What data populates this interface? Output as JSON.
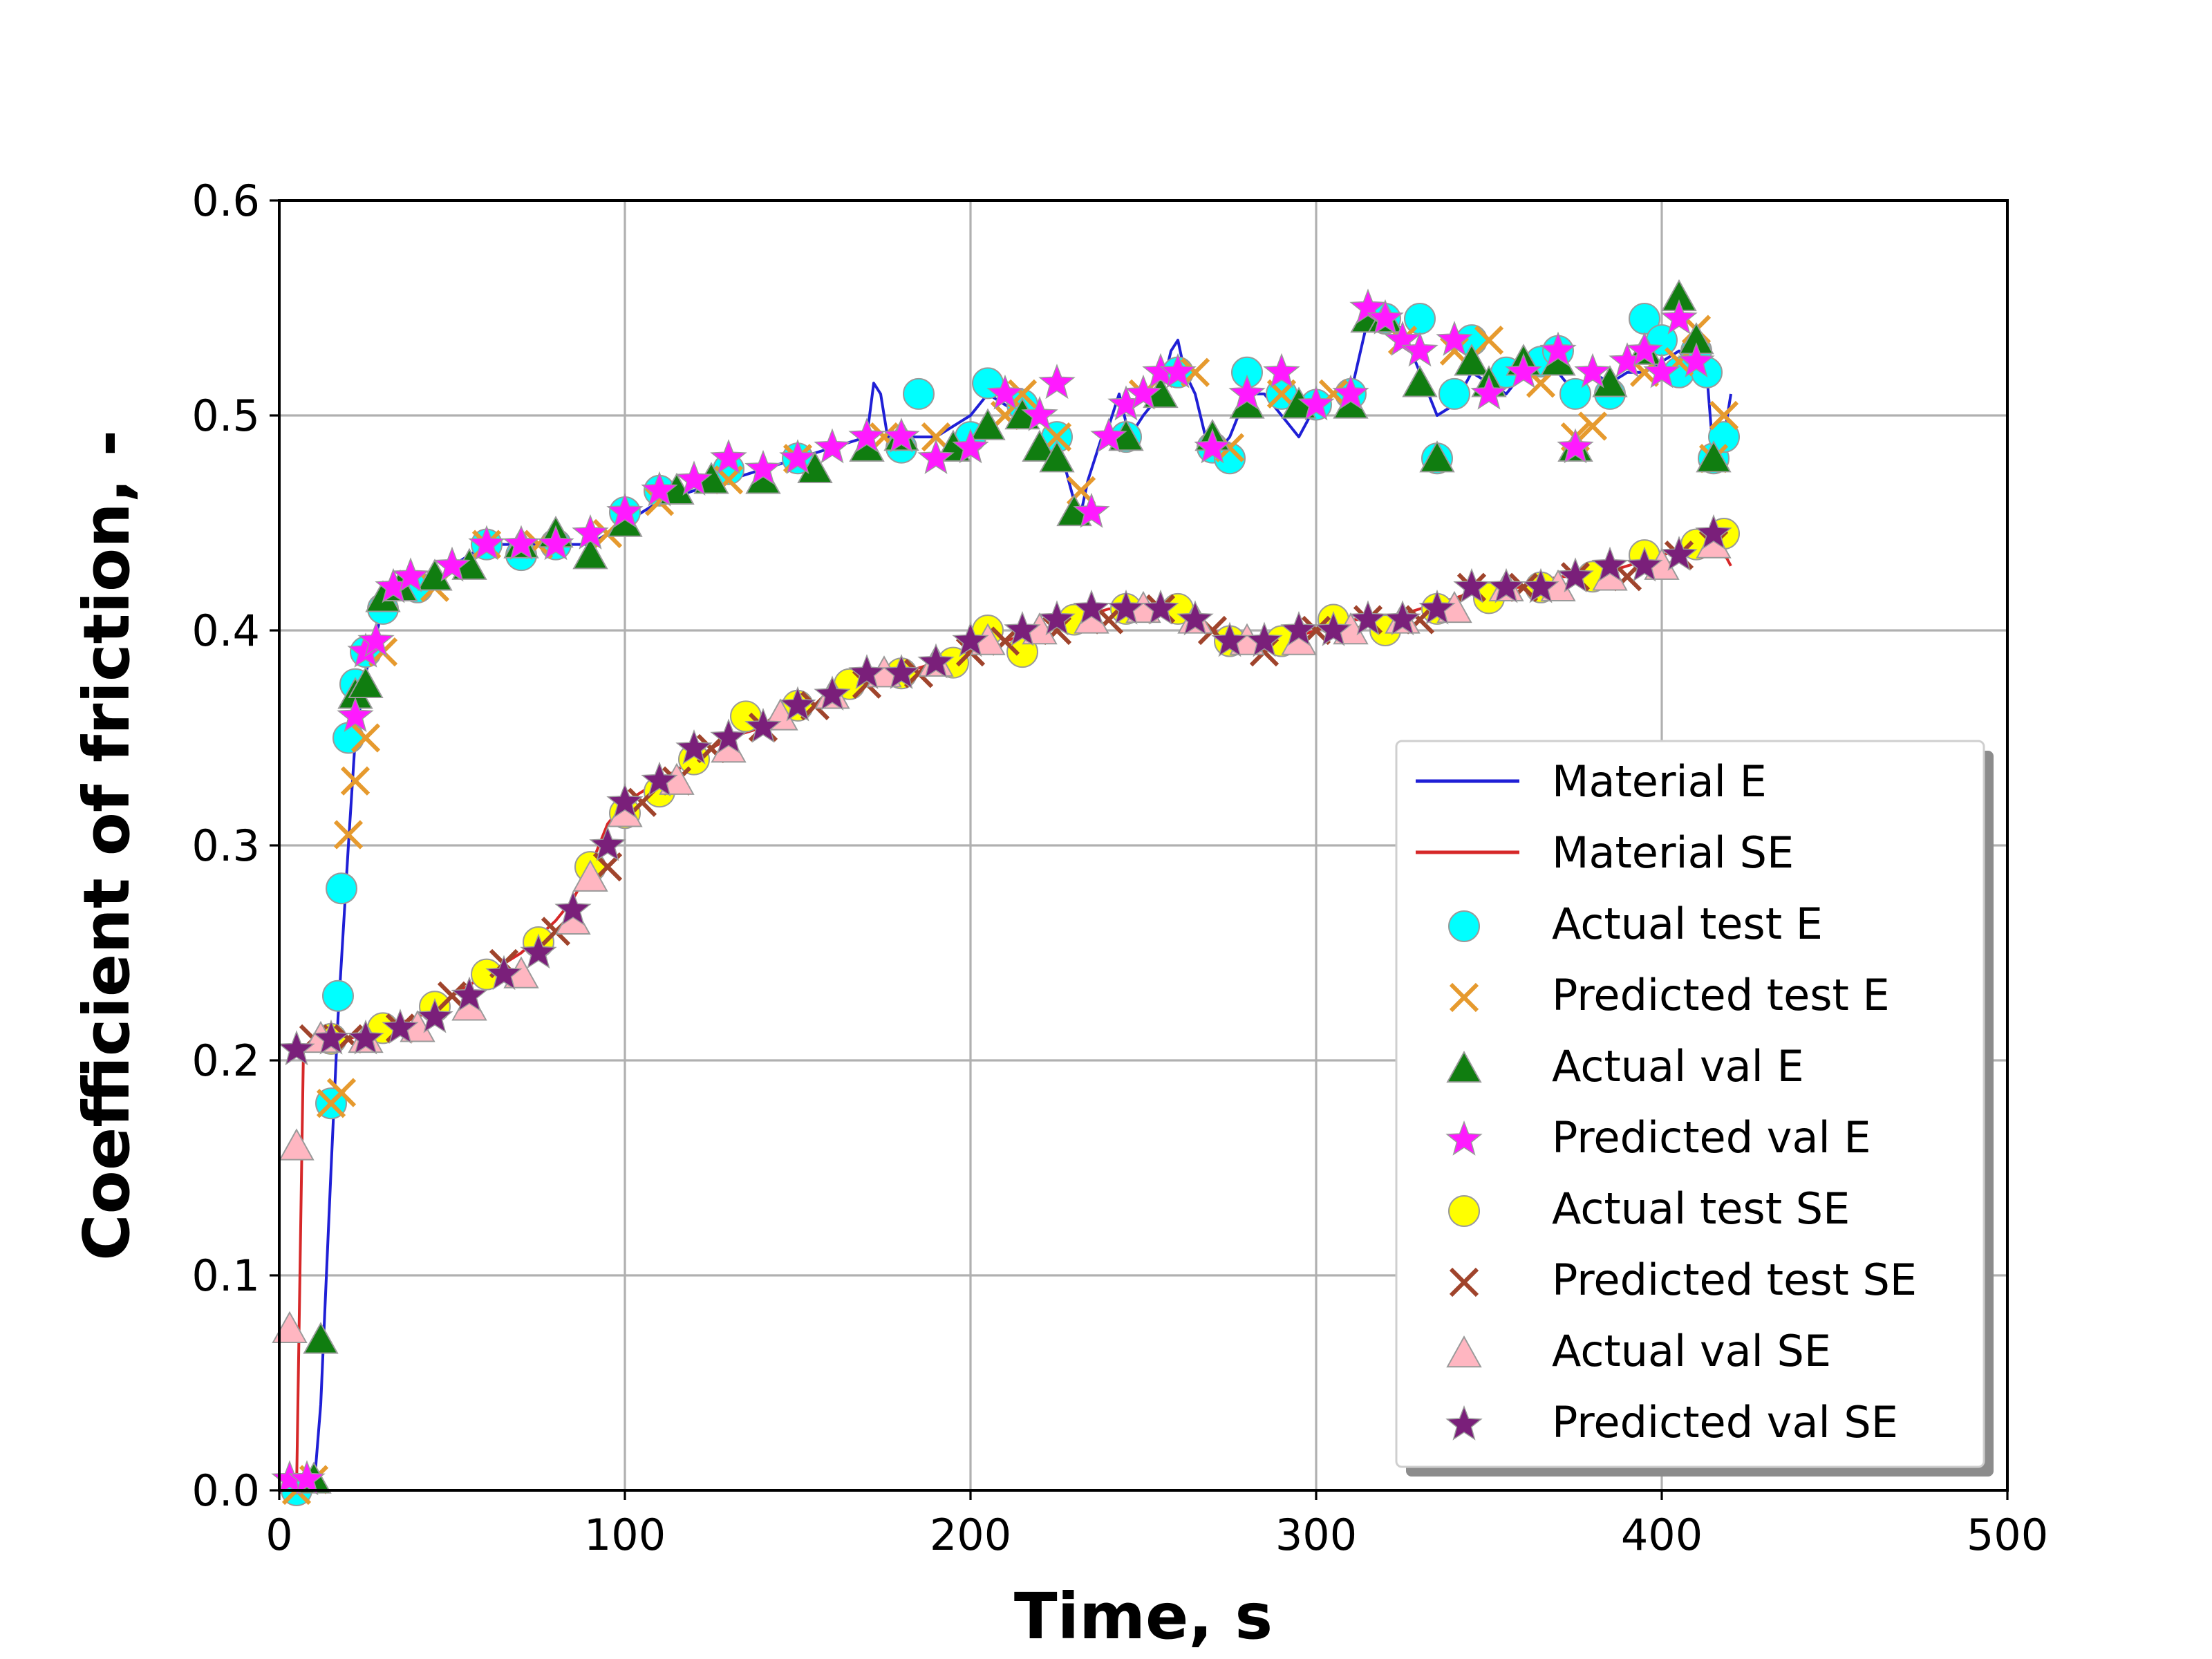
{
  "chart_data": {
    "type": "line",
    "title": "",
    "xlabel": "Time, s",
    "ylabel": "Coefficient of friction, -",
    "xlim": [
      0,
      500
    ],
    "ylim": [
      0,
      0.6
    ],
    "xticks": [
      0,
      100,
      200,
      300,
      400,
      500
    ],
    "yticks": [
      0.0,
      0.1,
      0.2,
      0.3,
      0.4,
      0.5,
      0.6
    ],
    "xtick_labels": [
      "0",
      "100",
      "200",
      "300",
      "400",
      "500"
    ],
    "ytick_labels": [
      "0.0",
      "0.1",
      "0.2",
      "0.3",
      "0.4",
      "0.5",
      "0.6"
    ],
    "grid": true,
    "legend_position": "lower-right",
    "series": [
      {
        "name": "Material E",
        "kind": "line",
        "color": "#1f1fd6",
        "x": [
          0,
          5,
          7,
          10,
          12,
          15,
          17,
          20,
          22,
          25,
          30,
          35,
          40,
          45,
          50,
          60,
          70,
          80,
          90,
          100,
          110,
          120,
          130,
          140,
          150,
          160,
          170,
          172,
          174,
          176,
          180,
          190,
          200,
          205,
          210,
          215,
          220,
          225,
          230,
          232,
          234,
          238,
          240,
          243,
          246,
          250,
          255,
          258,
          260,
          262,
          265,
          268,
          270,
          275,
          280,
          285,
          290,
          295,
          300,
          305,
          310,
          315,
          320,
          325,
          330,
          335,
          340,
          345,
          350,
          355,
          360,
          365,
          370,
          375,
          380,
          385,
          390,
          395,
          400,
          405,
          410,
          413,
          415,
          418,
          420
        ],
        "y": [
          0.0,
          0.0,
          0.0,
          0.0,
          0.04,
          0.15,
          0.22,
          0.3,
          0.35,
          0.38,
          0.41,
          0.42,
          0.42,
          0.42,
          0.43,
          0.44,
          0.44,
          0.44,
          0.44,
          0.45,
          0.46,
          0.465,
          0.47,
          0.475,
          0.48,
          0.485,
          0.49,
          0.515,
          0.51,
          0.49,
          0.49,
          0.49,
          0.5,
          0.51,
          0.505,
          0.5,
          0.5,
          0.49,
          0.46,
          0.455,
          0.47,
          0.49,
          0.495,
          0.51,
          0.49,
          0.5,
          0.51,
          0.53,
          0.535,
          0.52,
          0.51,
          0.49,
          0.48,
          0.49,
          0.51,
          0.51,
          0.5,
          0.49,
          0.505,
          0.51,
          0.51,
          0.545,
          0.545,
          0.54,
          0.52,
          0.5,
          0.505,
          0.52,
          0.515,
          0.51,
          0.52,
          0.52,
          0.52,
          0.51,
          0.52,
          0.515,
          0.52,
          0.52,
          0.525,
          0.53,
          0.52,
          0.52,
          0.48,
          0.49,
          0.51
        ]
      },
      {
        "name": "Material SE",
        "kind": "line",
        "color": "#d62728",
        "x": [
          0,
          5,
          7,
          10,
          15,
          20,
          30,
          40,
          50,
          60,
          70,
          80,
          85,
          90,
          95,
          100,
          110,
          120,
          130,
          140,
          150,
          160,
          170,
          180,
          190,
          200,
          205,
          210,
          220,
          230,
          240,
          250,
          260,
          270,
          280,
          290,
          300,
          310,
          320,
          330,
          340,
          350,
          360,
          370,
          380,
          390,
          400,
          410,
          415,
          420
        ],
        "y": [
          0.0,
          0.0,
          0.205,
          0.207,
          0.208,
          0.21,
          0.215,
          0.22,
          0.23,
          0.24,
          0.25,
          0.265,
          0.275,
          0.29,
          0.31,
          0.32,
          0.33,
          0.34,
          0.35,
          0.355,
          0.36,
          0.37,
          0.375,
          0.38,
          0.385,
          0.39,
          0.4,
          0.395,
          0.4,
          0.405,
          0.41,
          0.41,
          0.405,
          0.4,
          0.395,
          0.395,
          0.4,
          0.405,
          0.405,
          0.41,
          0.415,
          0.42,
          0.42,
          0.425,
          0.425,
          0.43,
          0.435,
          0.44,
          0.445,
          0.43
        ]
      },
      {
        "name": "Actual test E",
        "kind": "scatter",
        "marker": "circle",
        "color": "#00ffff",
        "x": [
          5,
          15,
          17,
          18,
          20,
          22,
          25,
          30,
          40,
          60,
          70,
          80,
          100,
          110,
          130,
          150,
          180,
          185,
          200,
          205,
          215,
          225,
          245,
          260,
          270,
          275,
          280,
          290,
          300,
          310,
          320,
          330,
          335,
          340,
          345,
          355,
          365,
          370,
          375,
          385,
          395,
          400,
          405,
          410,
          413,
          415,
          418
        ],
        "y": [
          0.0,
          0.18,
          0.23,
          0.28,
          0.35,
          0.375,
          0.39,
          0.41,
          0.42,
          0.44,
          0.435,
          0.44,
          0.455,
          0.465,
          0.475,
          0.48,
          0.485,
          0.51,
          0.49,
          0.515,
          0.505,
          0.49,
          0.49,
          0.52,
          0.485,
          0.48,
          0.52,
          0.51,
          0.505,
          0.51,
          0.545,
          0.545,
          0.48,
          0.51,
          0.535,
          0.52,
          0.525,
          0.53,
          0.51,
          0.51,
          0.545,
          0.535,
          0.52,
          0.53,
          0.52,
          0.48,
          0.49
        ]
      },
      {
        "name": "Predicted test E",
        "kind": "scatter",
        "marker": "x",
        "color": "#e69a2e",
        "x": [
          5,
          10,
          15,
          18,
          20,
          22,
          25,
          30,
          45,
          60,
          75,
          95,
          110,
          130,
          150,
          175,
          190,
          210,
          215,
          225,
          232,
          250,
          265,
          275,
          290,
          305,
          325,
          340,
          350,
          365,
          375,
          380,
          395,
          405,
          410,
          415,
          418
        ],
        "y": [
          0.0,
          0.005,
          0.18,
          0.185,
          0.305,
          0.33,
          0.35,
          0.39,
          0.42,
          0.44,
          0.44,
          0.445,
          0.46,
          0.47,
          0.48,
          0.49,
          0.49,
          0.5,
          0.51,
          0.49,
          0.465,
          0.51,
          0.52,
          0.485,
          0.51,
          0.51,
          0.535,
          0.53,
          0.535,
          0.515,
          0.49,
          0.495,
          0.52,
          0.525,
          0.54,
          0.48,
          0.5
        ]
      },
      {
        "name": "Actual val E",
        "kind": "scatter",
        "marker": "triangle",
        "color": "#107d10",
        "x": [
          10,
          12,
          22,
          25,
          30,
          35,
          45,
          55,
          70,
          80,
          90,
          100,
          115,
          125,
          140,
          155,
          170,
          180,
          195,
          205,
          215,
          220,
          225,
          230,
          245,
          255,
          270,
          280,
          295,
          310,
          315,
          320,
          330,
          335,
          345,
          350,
          360,
          370,
          375,
          385,
          395,
          405,
          410,
          415
        ],
        "y": [
          0.005,
          0.07,
          0.37,
          0.375,
          0.415,
          0.42,
          0.425,
          0.43,
          0.44,
          0.445,
          0.435,
          0.45,
          0.465,
          0.47,
          0.47,
          0.475,
          0.485,
          0.49,
          0.485,
          0.495,
          0.5,
          0.485,
          0.48,
          0.455,
          0.49,
          0.51,
          0.49,
          0.505,
          0.505,
          0.505,
          0.545,
          0.545,
          0.515,
          0.48,
          0.525,
          0.515,
          0.525,
          0.525,
          0.485,
          0.515,
          0.53,
          0.555,
          0.535,
          0.48
        ]
      },
      {
        "name": "Predicted val E",
        "kind": "scatter",
        "marker": "star",
        "color": "#ff1aff",
        "x": [
          3,
          8,
          22,
          25,
          28,
          33,
          38,
          50,
          60,
          70,
          80,
          90,
          100,
          110,
          120,
          130,
          140,
          150,
          160,
          170,
          180,
          190,
          200,
          210,
          220,
          225,
          235,
          240,
          245,
          250,
          255,
          260,
          270,
          280,
          290,
          300,
          310,
          315,
          320,
          325,
          330,
          340,
          350,
          360,
          370,
          375,
          380,
          390,
          395,
          400,
          405,
          410
        ],
        "y": [
          0.005,
          0.005,
          0.36,
          0.39,
          0.395,
          0.42,
          0.425,
          0.43,
          0.44,
          0.44,
          0.44,
          0.445,
          0.455,
          0.465,
          0.47,
          0.48,
          0.475,
          0.48,
          0.485,
          0.49,
          0.49,
          0.48,
          0.485,
          0.51,
          0.5,
          0.515,
          0.455,
          0.49,
          0.505,
          0.51,
          0.52,
          0.52,
          0.485,
          0.51,
          0.52,
          0.505,
          0.51,
          0.55,
          0.545,
          0.535,
          0.53,
          0.535,
          0.51,
          0.52,
          0.53,
          0.485,
          0.52,
          0.525,
          0.53,
          0.52,
          0.545,
          0.525
        ]
      },
      {
        "name": "Actual test SE",
        "kind": "scatter",
        "marker": "circle",
        "color": "#ffff00",
        "x": [
          15,
          30,
          45,
          60,
          75,
          90,
          100,
          110,
          120,
          135,
          150,
          165,
          180,
          195,
          205,
          215,
          230,
          245,
          260,
          275,
          290,
          305,
          320,
          335,
          350,
          365,
          380,
          395,
          410,
          418
        ],
        "y": [
          0.21,
          0.215,
          0.225,
          0.24,
          0.255,
          0.29,
          0.315,
          0.325,
          0.34,
          0.36,
          0.365,
          0.375,
          0.38,
          0.385,
          0.4,
          0.39,
          0.405,
          0.41,
          0.41,
          0.395,
          0.395,
          0.405,
          0.4,
          0.41,
          0.415,
          0.42,
          0.425,
          0.435,
          0.44,
          0.445
        ]
      },
      {
        "name": "Predicted test SE",
        "kind": "scatter",
        "marker": "x",
        "color": "#a0442c",
        "x": [
          10,
          20,
          35,
          50,
          65,
          80,
          95,
          105,
          115,
          125,
          140,
          155,
          170,
          185,
          200,
          210,
          225,
          240,
          255,
          270,
          285,
          300,
          315,
          330,
          345,
          360,
          375,
          390,
          405,
          415
        ],
        "y": [
          0.21,
          0.21,
          0.215,
          0.23,
          0.245,
          0.26,
          0.29,
          0.32,
          0.33,
          0.345,
          0.355,
          0.365,
          0.375,
          0.38,
          0.39,
          0.395,
          0.4,
          0.405,
          0.41,
          0.4,
          0.39,
          0.4,
          0.405,
          0.405,
          0.42,
          0.42,
          0.425,
          0.425,
          0.435,
          0.44
        ]
      },
      {
        "name": "Actual val SE",
        "kind": "scatter",
        "marker": "triangle",
        "color": "#ffb6c1",
        "x": [
          3,
          5,
          12,
          25,
          40,
          55,
          70,
          85,
          90,
          100,
          115,
          130,
          145,
          160,
          175,
          190,
          205,
          220,
          235,
          250,
          265,
          280,
          295,
          310,
          325,
          340,
          355,
          370,
          385,
          400,
          415
        ],
        "y": [
          0.075,
          0.16,
          0.21,
          0.21,
          0.215,
          0.225,
          0.24,
          0.265,
          0.285,
          0.315,
          0.33,
          0.345,
          0.36,
          0.37,
          0.38,
          0.385,
          0.395,
          0.4,
          0.405,
          0.41,
          0.405,
          0.395,
          0.395,
          0.4,
          0.405,
          0.41,
          0.42,
          0.42,
          0.425,
          0.43,
          0.44
        ]
      },
      {
        "name": "Predicted val SE",
        "kind": "scatter",
        "marker": "star",
        "color": "#7a1f7a",
        "x": [
          5,
          15,
          25,
          35,
          45,
          55,
          65,
          75,
          85,
          95,
          100,
          110,
          120,
          130,
          140,
          150,
          160,
          170,
          180,
          190,
          200,
          215,
          225,
          235,
          245,
          255,
          265,
          275,
          285,
          295,
          305,
          315,
          325,
          335,
          345,
          355,
          365,
          375,
          385,
          395,
          405,
          415
        ],
        "y": [
          0.205,
          0.21,
          0.21,
          0.215,
          0.22,
          0.23,
          0.24,
          0.25,
          0.27,
          0.3,
          0.32,
          0.33,
          0.345,
          0.35,
          0.355,
          0.365,
          0.37,
          0.38,
          0.38,
          0.385,
          0.395,
          0.4,
          0.405,
          0.41,
          0.41,
          0.41,
          0.405,
          0.395,
          0.395,
          0.4,
          0.4,
          0.405,
          0.405,
          0.41,
          0.42,
          0.42,
          0.42,
          0.425,
          0.43,
          0.43,
          0.435,
          0.445
        ]
      }
    ]
  }
}
